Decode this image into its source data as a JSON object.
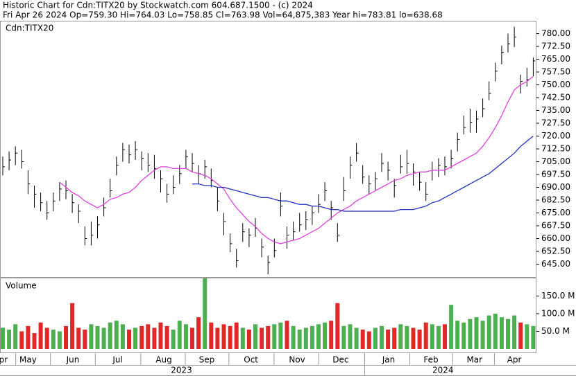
{
  "chart_data": {
    "type": "ohlc",
    "title": "Historic Chart for Cdn:TITX20 by Stockwatch.com 604.687.1500 - (c) 2024",
    "subtitle": "Fri Apr 26 2024   Op=759.30   Hi=764.03   Lo=758.85   Cl=763.98   Vol=64,875,383   Year hi=783.81   lo=638.68",
    "symbol": "Cdn:TITX20",
    "bar_color": "#000000",
    "high": [
      708,
      711,
      714,
      712,
      700,
      691,
      687,
      682,
      687,
      693,
      694,
      686,
      680,
      667,
      670,
      673,
      684,
      695,
      708,
      716,
      715,
      717,
      711,
      710,
      709,
      700,
      692,
      697,
      703,
      712,
      710,
      703,
      706,
      701,
      690,
      675,
      663,
      654,
      669,
      666,
      672,
      660,
      650,
      660,
      687,
      667,
      670,
      675,
      676,
      679,
      686,
      693,
      682,
      669,
      696,
      708,
      716,
      703,
      697,
      699,
      710,
      705,
      695,
      709,
      712,
      704,
      699,
      693,
      705,
      707,
      708,
      712,
      722,
      732,
      736,
      735,
      742,
      752,
      763,
      773,
      780,
      784,
      756,
      760,
      766
    ],
    "low": [
      697,
      700,
      703,
      701,
      686,
      678,
      676,
      671,
      676,
      682,
      683,
      675,
      669,
      656,
      656,
      660,
      673,
      684,
      697,
      705,
      704,
      706,
      700,
      699,
      695,
      687,
      681,
      686,
      692,
      701,
      699,
      692,
      695,
      690,
      676,
      662,
      652,
      643,
      658,
      655,
      661,
      649,
      639,
      649,
      673,
      654,
      659,
      664,
      665,
      668,
      675,
      682,
      671,
      658,
      682,
      695,
      705,
      692,
      686,
      688,
      699,
      694,
      684,
      698,
      698,
      691,
      688,
      682,
      694,
      696,
      697,
      701,
      711,
      721,
      722,
      722,
      731,
      741,
      752,
      762,
      769,
      772,
      745,
      749,
      755
    ],
    "close": [
      702,
      706,
      710,
      705,
      692,
      686,
      681,
      675,
      682,
      689,
      688,
      681,
      676,
      660,
      662,
      668,
      678,
      688,
      703,
      712,
      709,
      712,
      707,
      703,
      701,
      695,
      686,
      690,
      698,
      708,
      704,
      698,
      702,
      694,
      682,
      670,
      657,
      647,
      664,
      662,
      666,
      655,
      646,
      653,
      679,
      662,
      664,
      668,
      671,
      675,
      680,
      688,
      678,
      662,
      688,
      703,
      710,
      696,
      692,
      695,
      704,
      700,
      691,
      702,
      704,
      699,
      693,
      686,
      700,
      703,
      702,
      707,
      718,
      725,
      728,
      730,
      736,
      745,
      758,
      769,
      774,
      778,
      752,
      753,
      764
    ],
    "moving_averages": [
      {
        "color": "#e040e0",
        "values": [
          null,
          null,
          null,
          null,
          null,
          null,
          null,
          null,
          null,
          693,
          690,
          687,
          685,
          682,
          680,
          678,
          680,
          683,
          684,
          686,
          687,
          690,
          694,
          697,
          700,
          702,
          702,
          701,
          701,
          701,
          699,
          698,
          697,
          695,
          692,
          689,
          683,
          678,
          674,
          670,
          667,
          663,
          660,
          658,
          657,
          658,
          659,
          660,
          662,
          664,
          666,
          669,
          672,
          675,
          677,
          679,
          682,
          684,
          686,
          688,
          690,
          692,
          694,
          695,
          697,
          698,
          699,
          699,
          700,
          700,
          700,
          702,
          704,
          706,
          708,
          710,
          714,
          719,
          725,
          732,
          740,
          747,
          750,
          752,
          755
        ]
      },
      {
        "color": "#2030c0",
        "values": [
          null,
          null,
          null,
          null,
          null,
          null,
          null,
          null,
          null,
          null,
          null,
          null,
          null,
          null,
          null,
          null,
          null,
          null,
          null,
          null,
          null,
          null,
          null,
          null,
          null,
          null,
          null,
          null,
          null,
          null,
          692,
          692,
          691,
          691,
          690,
          690,
          689,
          688,
          687,
          686,
          685,
          684,
          684,
          683,
          682,
          682,
          681,
          680,
          680,
          679,
          679,
          678,
          677,
          677,
          676,
          676,
          676,
          676,
          676,
          676,
          676,
          676,
          676,
          677,
          677,
          677,
          678,
          679,
          681,
          682,
          684,
          686,
          688,
          690,
          692,
          694,
          696,
          698,
          701,
          704,
          707,
          710,
          714,
          717,
          720
        ]
      }
    ],
    "ylim": [
      637.5,
      787.5
    ],
    "yticks": [
      {
        "value": 645,
        "label": "645.00"
      },
      {
        "value": 652.5,
        "label": "652.50"
      },
      {
        "value": 660,
        "label": "660.00"
      },
      {
        "value": 667.5,
        "label": "667.50"
      },
      {
        "value": 675,
        "label": "675.00"
      },
      {
        "value": 682.5,
        "label": "682.50"
      },
      {
        "value": 690,
        "label": "690.00"
      },
      {
        "value": 697.5,
        "label": "697.50"
      },
      {
        "value": 705,
        "label": "705.00"
      },
      {
        "value": 712.5,
        "label": "712.50"
      },
      {
        "value": 720,
        "label": "720.00"
      },
      {
        "value": 727.5,
        "label": "727.50"
      },
      {
        "value": 735,
        "label": "735.00"
      },
      {
        "value": 742.5,
        "label": "742.50"
      },
      {
        "value": 750,
        "label": "750.00"
      },
      {
        "value": 757.5,
        "label": "757.50"
      },
      {
        "value": 765,
        "label": "765.00"
      },
      {
        "value": 772.5,
        "label": "772.50"
      },
      {
        "value": 780,
        "label": "780.00"
      }
    ],
    "volume": {
      "label": "Volume",
      "up_color": "#4caf50",
      "down_color": "#e02828",
      "values": [
        60,
        55,
        70,
        50,
        65,
        45,
        75,
        60,
        55,
        50,
        65,
        130,
        60,
        55,
        70,
        65,
        60,
        75,
        80,
        70,
        55,
        60,
        65,
        70,
        60,
        75,
        65,
        55,
        80,
        70,
        60,
        90,
        200,
        75,
        60,
        70,
        65,
        75,
        60,
        55,
        70,
        60,
        65,
        70,
        75,
        80,
        65,
        55,
        60,
        65,
        70,
        75,
        80,
        130,
        65,
        70,
        60,
        55,
        50,
        60,
        65,
        55,
        60,
        70,
        65,
        60,
        55,
        75,
        70,
        65,
        70,
        125,
        80,
        75,
        85,
        90,
        80,
        95,
        100,
        90,
        85,
        95,
        75,
        70,
        65
      ],
      "ylim": [
        0,
        200
      ],
      "yticks": [
        {
          "value": 50,
          "label": "50.0 M"
        },
        {
          "value": 100,
          "label": "100.0 M"
        },
        {
          "value": 150,
          "label": "150.0 M"
        }
      ]
    },
    "xticks": [
      {
        "value": 0.1,
        "label": "pr"
      },
      {
        "value": 4,
        "label": "May"
      },
      {
        "value": 11.1,
        "label": "Jun"
      },
      {
        "value": 18.2,
        "label": "Jul"
      },
      {
        "value": 25.5,
        "label": "Aug"
      },
      {
        "value": 32.3,
        "label": "Sep"
      },
      {
        "value": 39.3,
        "label": "Oct"
      },
      {
        "value": 46.6,
        "label": "Nov"
      },
      {
        "value": 53.5,
        "label": "Dec"
      },
      {
        "value": 61.1,
        "label": "Jan"
      },
      {
        "value": 67.8,
        "label": "Feb"
      },
      {
        "value": 74.7,
        "label": "Mar"
      },
      {
        "value": 81,
        "label": "Apr"
      }
    ],
    "years": [
      {
        "value": 28.3,
        "label": "2023"
      },
      {
        "value": 69.7,
        "label": "2024"
      }
    ]
  }
}
